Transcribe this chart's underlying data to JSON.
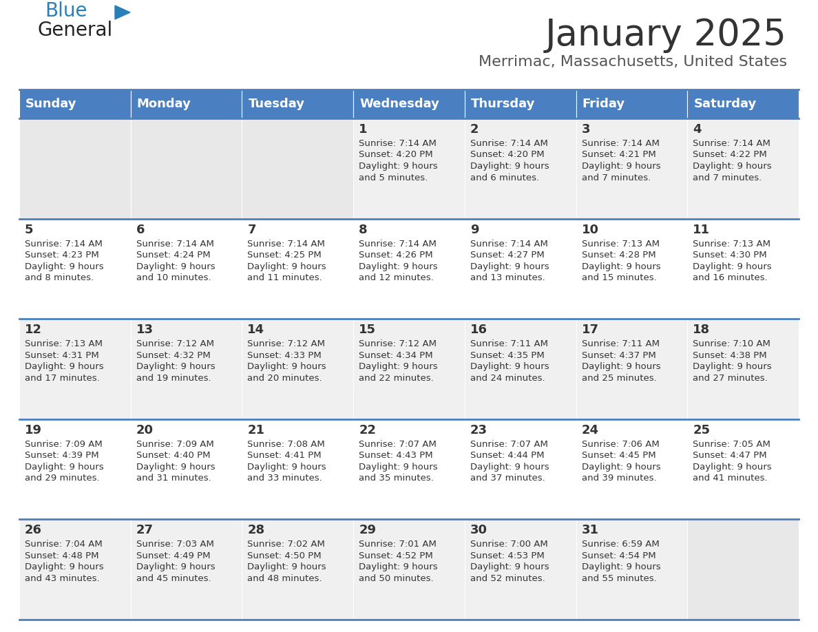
{
  "title": "January 2025",
  "subtitle": "Merrimac, Massachusetts, United States",
  "header_color": "#4a7fc1",
  "header_text_color": "#FFFFFF",
  "cell_bg_white": "#FFFFFF",
  "cell_bg_gray": "#F0F0F0",
  "cell_bg_empty_gray": "#E8E8E8",
  "separator_color": "#4a7fc1",
  "text_color": "#333333",
  "days_of_week": [
    "Sunday",
    "Monday",
    "Tuesday",
    "Wednesday",
    "Thursday",
    "Friday",
    "Saturday"
  ],
  "weeks": [
    [
      {
        "day": "",
        "sunrise": "",
        "sunset": "",
        "daylight": ""
      },
      {
        "day": "",
        "sunrise": "",
        "sunset": "",
        "daylight": ""
      },
      {
        "day": "",
        "sunrise": "",
        "sunset": "",
        "daylight": ""
      },
      {
        "day": "1",
        "sunrise": "7:14 AM",
        "sunset": "4:20 PM",
        "daylight": "9 hours and 5 minutes."
      },
      {
        "day": "2",
        "sunrise": "7:14 AM",
        "sunset": "4:20 PM",
        "daylight": "9 hours and 6 minutes."
      },
      {
        "day": "3",
        "sunrise": "7:14 AM",
        "sunset": "4:21 PM",
        "daylight": "9 hours and 7 minutes."
      },
      {
        "day": "4",
        "sunrise": "7:14 AM",
        "sunset": "4:22 PM",
        "daylight": "9 hours and 7 minutes."
      }
    ],
    [
      {
        "day": "5",
        "sunrise": "7:14 AM",
        "sunset": "4:23 PM",
        "daylight": "9 hours and 8 minutes."
      },
      {
        "day": "6",
        "sunrise": "7:14 AM",
        "sunset": "4:24 PM",
        "daylight": "9 hours and 10 minutes."
      },
      {
        "day": "7",
        "sunrise": "7:14 AM",
        "sunset": "4:25 PM",
        "daylight": "9 hours and 11 minutes."
      },
      {
        "day": "8",
        "sunrise": "7:14 AM",
        "sunset": "4:26 PM",
        "daylight": "9 hours and 12 minutes."
      },
      {
        "day": "9",
        "sunrise": "7:14 AM",
        "sunset": "4:27 PM",
        "daylight": "9 hours and 13 minutes."
      },
      {
        "day": "10",
        "sunrise": "7:13 AM",
        "sunset": "4:28 PM",
        "daylight": "9 hours and 15 minutes."
      },
      {
        "day": "11",
        "sunrise": "7:13 AM",
        "sunset": "4:30 PM",
        "daylight": "9 hours and 16 minutes."
      }
    ],
    [
      {
        "day": "12",
        "sunrise": "7:13 AM",
        "sunset": "4:31 PM",
        "daylight": "9 hours and 17 minutes."
      },
      {
        "day": "13",
        "sunrise": "7:12 AM",
        "sunset": "4:32 PM",
        "daylight": "9 hours and 19 minutes."
      },
      {
        "day": "14",
        "sunrise": "7:12 AM",
        "sunset": "4:33 PM",
        "daylight": "9 hours and 20 minutes."
      },
      {
        "day": "15",
        "sunrise": "7:12 AM",
        "sunset": "4:34 PM",
        "daylight": "9 hours and 22 minutes."
      },
      {
        "day": "16",
        "sunrise": "7:11 AM",
        "sunset": "4:35 PM",
        "daylight": "9 hours and 24 minutes."
      },
      {
        "day": "17",
        "sunrise": "7:11 AM",
        "sunset": "4:37 PM",
        "daylight": "9 hours and 25 minutes."
      },
      {
        "day": "18",
        "sunrise": "7:10 AM",
        "sunset": "4:38 PM",
        "daylight": "9 hours and 27 minutes."
      }
    ],
    [
      {
        "day": "19",
        "sunrise": "7:09 AM",
        "sunset": "4:39 PM",
        "daylight": "9 hours and 29 minutes."
      },
      {
        "day": "20",
        "sunrise": "7:09 AM",
        "sunset": "4:40 PM",
        "daylight": "9 hours and 31 minutes."
      },
      {
        "day": "21",
        "sunrise": "7:08 AM",
        "sunset": "4:41 PM",
        "daylight": "9 hours and 33 minutes."
      },
      {
        "day": "22",
        "sunrise": "7:07 AM",
        "sunset": "4:43 PM",
        "daylight": "9 hours and 35 minutes."
      },
      {
        "day": "23",
        "sunrise": "7:07 AM",
        "sunset": "4:44 PM",
        "daylight": "9 hours and 37 minutes."
      },
      {
        "day": "24",
        "sunrise": "7:06 AM",
        "sunset": "4:45 PM",
        "daylight": "9 hours and 39 minutes."
      },
      {
        "day": "25",
        "sunrise": "7:05 AM",
        "sunset": "4:47 PM",
        "daylight": "9 hours and 41 minutes."
      }
    ],
    [
      {
        "day": "26",
        "sunrise": "7:04 AM",
        "sunset": "4:48 PM",
        "daylight": "9 hours and 43 minutes."
      },
      {
        "day": "27",
        "sunrise": "7:03 AM",
        "sunset": "4:49 PM",
        "daylight": "9 hours and 45 minutes."
      },
      {
        "day": "28",
        "sunrise": "7:02 AM",
        "sunset": "4:50 PM",
        "daylight": "9 hours and 48 minutes."
      },
      {
        "day": "29",
        "sunrise": "7:01 AM",
        "sunset": "4:52 PM",
        "daylight": "9 hours and 50 minutes."
      },
      {
        "day": "30",
        "sunrise": "7:00 AM",
        "sunset": "4:53 PM",
        "daylight": "9 hours and 52 minutes."
      },
      {
        "day": "31",
        "sunrise": "6:59 AM",
        "sunset": "4:54 PM",
        "daylight": "9 hours and 55 minutes."
      },
      {
        "day": "",
        "sunrise": "",
        "sunset": "",
        "daylight": ""
      }
    ]
  ],
  "logo_general_color": "#222222",
  "logo_blue_color": "#2980B9",
  "logo_triangle_color": "#2980B9",
  "title_fontsize": 38,
  "subtitle_fontsize": 16,
  "header_fontsize": 13,
  "day_num_fontsize": 13,
  "cell_text_fontsize": 9.5
}
